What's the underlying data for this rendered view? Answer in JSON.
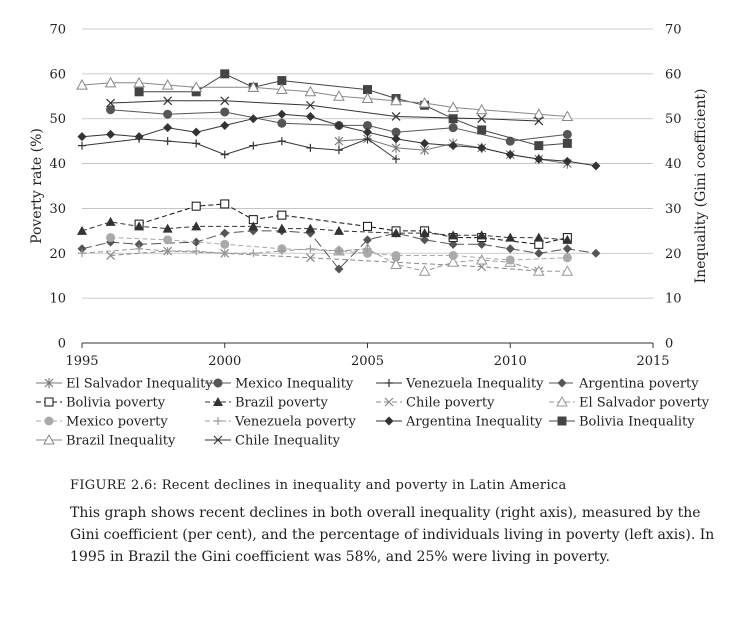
{
  "chart_data": {
    "type": "line",
    "xlim": [
      1995,
      2015
    ],
    "xticks": [
      "1995",
      "2000",
      "2005",
      "2010",
      "2015"
    ],
    "ylim": [
      0,
      70
    ],
    "yticks": [
      "0",
      "10",
      "20",
      "30",
      "40",
      "50",
      "60",
      "70"
    ],
    "ylabel": "Poverty rate (%)",
    "y2lim": [
      0,
      70
    ],
    "y2ticks": [
      "0",
      "10",
      "20",
      "30",
      "40",
      "50",
      "60",
      "70"
    ],
    "y2label": "Inequality (Gini coefficient)",
    "grid": true,
    "legend_position": "bottom",
    "series": [
      {
        "name": "El Salvador Inequality",
        "axis": "right",
        "marker": "asterisk",
        "dash": "solid",
        "color": "#777777",
        "x": [
          2004,
          2005,
          2006,
          2007,
          2008,
          2009,
          2010,
          2011,
          2012
        ],
        "y": [
          45,
          45.5,
          43.5,
          43,
          44.5,
          43.5,
          42,
          41,
          40
        ]
      },
      {
        "name": "Mexico Inequality",
        "axis": "right",
        "marker": "circle",
        "dash": "solid",
        "color": "#555555",
        "x": [
          1996,
          1998,
          2000,
          2002,
          2004,
          2005,
          2006,
          2008,
          2010,
          2012
        ],
        "y": [
          52,
          51,
          51.5,
          49,
          48.5,
          48.5,
          47,
          48,
          45,
          46.5
        ]
      },
      {
        "name": "Venezuela Inequality",
        "axis": "right",
        "marker": "plus",
        "dash": "solid",
        "color": "#333333",
        "x": [
          1995,
          1997,
          1998,
          1999,
          2000,
          2001,
          2002,
          2003,
          2004,
          2005,
          2006
        ],
        "y": [
          44,
          45.5,
          45,
          44.5,
          42,
          44,
          45,
          43.5,
          43,
          45.5,
          41
        ]
      },
      {
        "name": "Argentina poverty",
        "axis": "left",
        "marker": "diamond",
        "dash": "longdash",
        "color": "#555555",
        "x": [
          1995,
          1996,
          1997,
          1999,
          2000,
          2001,
          2002,
          2003,
          2004,
          2005,
          2006,
          2007,
          2008,
          2009,
          2010,
          2011,
          2012,
          2013
        ],
        "y": [
          21,
          22.5,
          22,
          22.5,
          24.5,
          25,
          25,
          24.5,
          16.5,
          23,
          24.5,
          23,
          22,
          22,
          21,
          20,
          21,
          20
        ]
      },
      {
        "name": "Bolivia poverty",
        "axis": "left",
        "marker": "square-open",
        "dash": "dash",
        "color": "#111111",
        "x": [
          1997,
          1999,
          2000,
          2001,
          2002,
          2005,
          2006,
          2007,
          2008,
          2009,
          2011,
          2012
        ],
        "y": [
          26.5,
          30.5,
          31,
          27.5,
          28.5,
          26,
          25,
          25,
          23.5,
          23.5,
          22,
          23.5
        ]
      },
      {
        "name": "Brazil poverty",
        "axis": "left",
        "marker": "triangle-filled",
        "dash": "dash",
        "color": "#333333",
        "x": [
          1995,
          1996,
          1997,
          1998,
          1999,
          2001,
          2002,
          2003,
          2004,
          2006,
          2007,
          2008,
          2009,
          2010,
          2011,
          2012
        ],
        "y": [
          25,
          27,
          26,
          25.5,
          26,
          26,
          25.5,
          25.5,
          25,
          24.5,
          24.5,
          24,
          24,
          23.5,
          23.5,
          23
        ]
      },
      {
        "name": "Chile poverty",
        "axis": "left",
        "marker": "x",
        "dash": "dash",
        "color": "#888888",
        "x": [
          1996,
          1998,
          2000,
          2003,
          2006,
          2009,
          2011
        ],
        "y": [
          19.5,
          20.5,
          20,
          19,
          18,
          17,
          16
        ]
      },
      {
        "name": "El Salvador poverty",
        "axis": "left",
        "marker": "triangle-open",
        "dash": "dash",
        "color": "#999999",
        "x": [
          2004,
          2005,
          2006,
          2007,
          2008,
          2009,
          2010,
          2011,
          2012
        ],
        "y": [
          20.5,
          21,
          17.5,
          16,
          18,
          18.5,
          18,
          16,
          16
        ]
      },
      {
        "name": "Mexico poverty",
        "axis": "left",
        "marker": "circle-gray",
        "dash": "dash",
        "color": "#aaaaaa",
        "x": [
          1996,
          1998,
          2000,
          2002,
          2004,
          2005,
          2006,
          2008,
          2010,
          2012
        ],
        "y": [
          23.5,
          23,
          22,
          21,
          20.5,
          20,
          19.5,
          19.5,
          18.5,
          19
        ]
      },
      {
        "name": "Venezuela poverty",
        "axis": "left",
        "marker": "plus",
        "dash": "dash",
        "color": "#999999",
        "x": [
          1995,
          1997,
          1998,
          1999,
          2000,
          2001,
          2002,
          2003,
          2004,
          2005
        ],
        "y": [
          20,
          21,
          20.5,
          20.5,
          20,
          20,
          20.5,
          21,
          20.5,
          21
        ]
      },
      {
        "name": "Argentina Inequality",
        "axis": "right",
        "marker": "diamond",
        "dash": "solid",
        "color": "#333333",
        "x": [
          1995,
          1996,
          1997,
          1998,
          1999,
          2000,
          2001,
          2002,
          2003,
          2004,
          2005,
          2006,
          2007,
          2008,
          2009,
          2010,
          2011,
          2012,
          2013
        ],
        "y": [
          46,
          46.5,
          46,
          48,
          47,
          48.5,
          50,
          51,
          50.5,
          48.5,
          47,
          45.5,
          44.5,
          44,
          43.5,
          42,
          41,
          40.5,
          39.5
        ]
      },
      {
        "name": "Bolivia Inequality",
        "axis": "right",
        "marker": "square",
        "dash": "solid",
        "color": "#444444",
        "x": [
          1997,
          1999,
          2000,
          2001,
          2002,
          2005,
          2006,
          2007,
          2008,
          2009,
          2011,
          2012
        ],
        "y": [
          56,
          56,
          60,
          57,
          58.5,
          56.5,
          54.5,
          53,
          50,
          47.5,
          44,
          44.5
        ]
      },
      {
        "name": "Brazil Inequality",
        "axis": "right",
        "marker": "triangle-open",
        "dash": "solid",
        "color": "#888888",
        "x": [
          1995,
          1996,
          1997,
          1998,
          1999,
          2001,
          2002,
          2003,
          2004,
          2005,
          2006,
          2007,
          2008,
          2009,
          2011,
          2012
        ],
        "y": [
          57.5,
          58,
          58,
          57.5,
          57,
          57,
          56.5,
          56,
          55,
          54.5,
          54,
          53.5,
          52.5,
          52,
          51,
          50.5
        ]
      },
      {
        "name": "Chile Inequality",
        "axis": "right",
        "marker": "x",
        "dash": "solid",
        "color": "#333333",
        "x": [
          1996,
          1998,
          2000,
          2003,
          2006,
          2009,
          2011
        ],
        "y": [
          53.5,
          54,
          54,
          53,
          50.5,
          50,
          49.5
        ]
      }
    ]
  },
  "caption": {
    "figure_label": "FIGURE 2.6: Recent declines in inequality and poverty in Latin America",
    "text": "This graph shows recent declines in both overall inequality (right axis), measured by the Gini coefficient (per cent), and the percentage of individuals living in poverty (left axis). In 1995 in Brazil the Gini coefficient was 58%, and 25% were living in poverty."
  }
}
